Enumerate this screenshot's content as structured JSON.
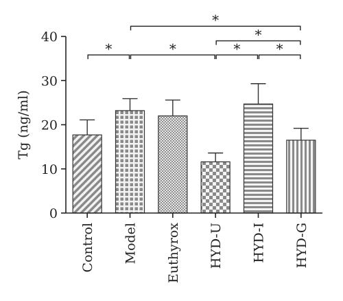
{
  "chart_data": {
    "type": "bar",
    "title": "",
    "xlabel": "",
    "ylabel": "Tg (ng/ml)",
    "ylim": [
      0,
      40
    ],
    "yticks": [
      0,
      10,
      20,
      30,
      40
    ],
    "categories": [
      "Control",
      "Model",
      "Euthyrox",
      "HYD-U",
      "HYD-I",
      "HYD-G"
    ],
    "values": [
      17.7,
      23.2,
      22.0,
      11.6,
      24.7,
      16.5
    ],
    "errors": [
      3.4,
      2.7,
      3.6,
      2.0,
      4.6,
      2.7
    ],
    "patterns": [
      "diagonal-stripes",
      "dotted-grid",
      "fine-dots",
      "checkerboard",
      "horizontal-stripes",
      "vertical-stripes"
    ],
    "bar_color": "#9a9a9a",
    "significance": [
      {
        "from": 0,
        "to": 1,
        "level": 35.8,
        "label": "*"
      },
      {
        "from": 1,
        "to": 3,
        "level": 35.8,
        "label": "*"
      },
      {
        "from": 3,
        "to": 4,
        "level": 35.8,
        "label": "*"
      },
      {
        "from": 4,
        "to": 5,
        "level": 35.8,
        "label": "*"
      },
      {
        "from": 3,
        "to": 5,
        "level": 39.0,
        "label": "*"
      },
      {
        "from": 1,
        "to": 5,
        "level": 42.3,
        "label": "*"
      }
    ],
    "grid": false,
    "legend": "none"
  }
}
